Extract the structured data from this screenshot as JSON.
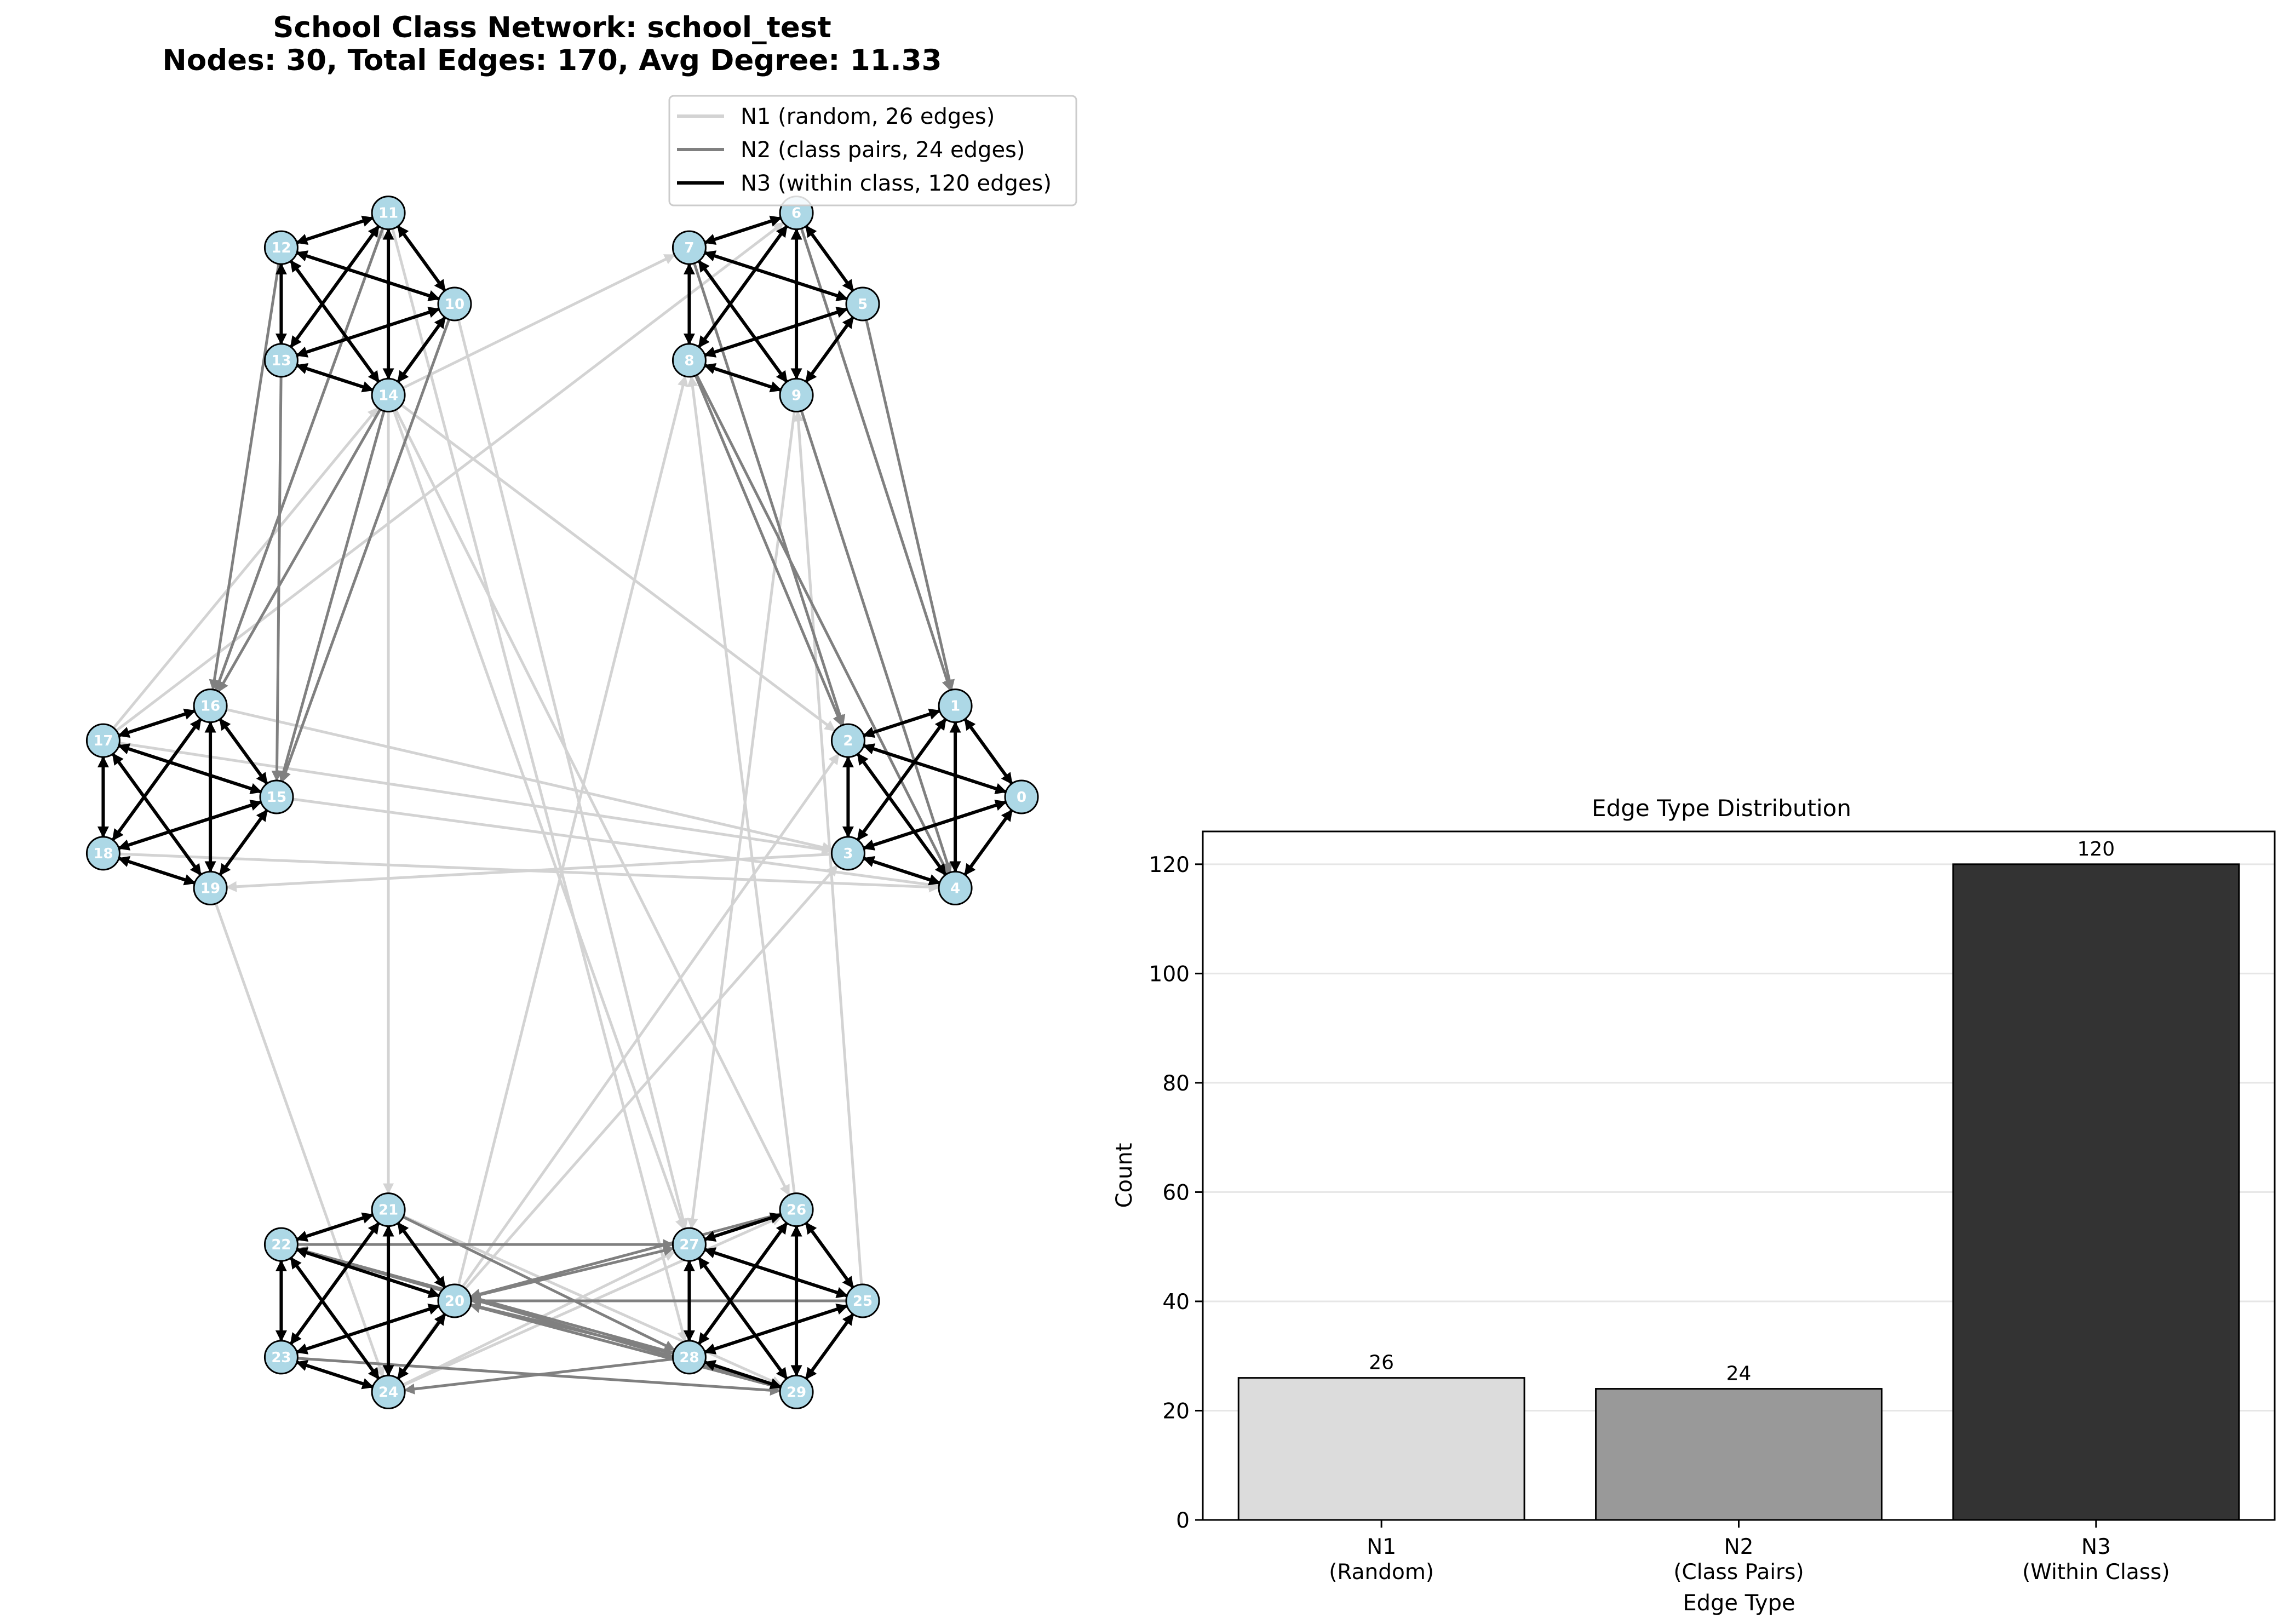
{
  "chart_data": [
    {
      "type": "network",
      "title": "School Class Network: school_test",
      "subtitle": "Nodes: 30, Total Edges: 170, Avg Degree: 11.33",
      "nodes": [
        "0",
        "1",
        "2",
        "3",
        "4",
        "5",
        "6",
        "7",
        "8",
        "9",
        "10",
        "11",
        "12",
        "13",
        "14",
        "15",
        "16",
        "17",
        "18",
        "19",
        "20",
        "21",
        "22",
        "23",
        "24",
        "25",
        "26",
        "27",
        "28",
        "29"
      ],
      "legend": [
        {
          "key": "N1",
          "label": "N1 (random, 26 edges)",
          "color": "#d3d3d3"
        },
        {
          "key": "N2",
          "label": "N2 (class pairs, 24 edges)",
          "color": "#808080"
        },
        {
          "key": "N3",
          "label": "N3 (within class, 120 edges)",
          "color": "#000000"
        }
      ],
      "edges": {
        "N1": [
          [
            14,
            7
          ],
          [
            17,
            6
          ],
          [
            14,
            2
          ],
          [
            17,
            3
          ],
          [
            16,
            3
          ],
          [
            15,
            4
          ],
          [
            18,
            4
          ],
          [
            20,
            3
          ],
          [
            20,
            8
          ],
          [
            24,
            2
          ],
          [
            19,
            24
          ],
          [
            3,
            19
          ],
          [
            14,
            21
          ],
          [
            14,
            27
          ],
          [
            14,
            26
          ],
          [
            11,
            28
          ],
          [
            10,
            27
          ],
          [
            16,
            11
          ],
          [
            17,
            14
          ],
          [
            21,
            29
          ],
          [
            24,
            26
          ],
          [
            24,
            27
          ],
          [
            9,
            27
          ],
          [
            28,
            25
          ],
          [
            26,
            8
          ],
          [
            25,
            9
          ]
        ],
        "N2": [
          [
            11,
            16
          ],
          [
            12,
            16
          ],
          [
            14,
            16
          ],
          [
            10,
            15
          ],
          [
            13,
            15
          ],
          [
            14,
            15
          ],
          [
            6,
            1
          ],
          [
            5,
            1
          ],
          [
            8,
            4
          ],
          [
            9,
            4
          ],
          [
            7,
            2
          ],
          [
            8,
            2
          ],
          [
            22,
            27
          ],
          [
            20,
            27
          ],
          [
            20,
            28
          ],
          [
            20,
            29
          ],
          [
            29,
            20
          ],
          [
            29,
            22
          ],
          [
            28,
            22
          ],
          [
            26,
            20
          ],
          [
            25,
            20
          ],
          [
            21,
            28
          ],
          [
            23,
            29
          ],
          [
            28,
            24
          ]
        ]
      },
      "node_color": "#add8e6",
      "classes": 6,
      "class_size": 5
    },
    {
      "type": "bar",
      "title": "Edge Type Distribution",
      "xlabel": "Edge Type",
      "ylabel": "Count",
      "categories": [
        "N1\n(Random)",
        "N2\n(Class Pairs)",
        "N3\n(Within Class)"
      ],
      "values": [
        26,
        24,
        120
      ],
      "colors": [
        "#dcdcdc",
        "#999999",
        "#333333"
      ],
      "ylim": [
        0,
        126
      ],
      "yticks": [
        0,
        20,
        40,
        60,
        80,
        100,
        120
      ],
      "grid": "y"
    }
  ]
}
